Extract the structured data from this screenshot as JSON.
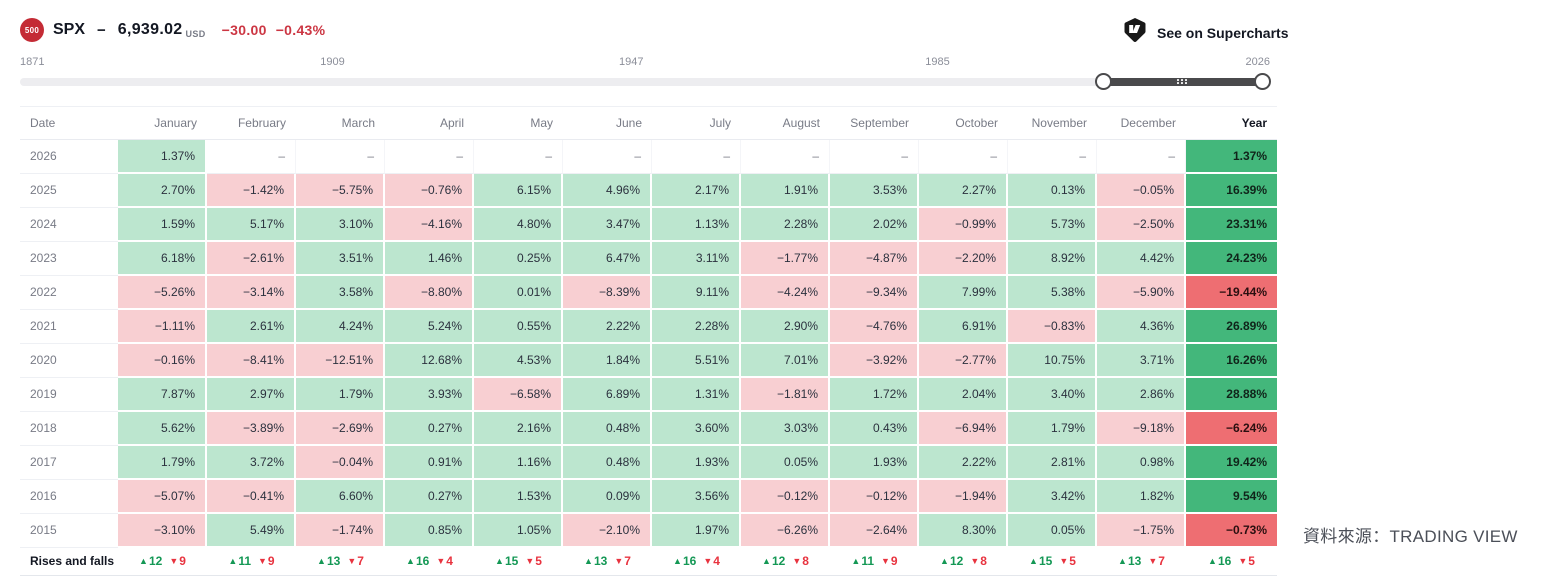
{
  "header": {
    "badge": "500",
    "symbol": "SPX",
    "separator": "−",
    "price": "6,939.02",
    "currency": "USD",
    "change": "−30.00",
    "change_pct": "−0.43%",
    "supercharts_label": "See on Supercharts"
  },
  "icons": {
    "tradingview_logo": "tradingview-logo",
    "up_triangle": "▲",
    "down_triangle": "▼",
    "empty_cell": "–"
  },
  "timeline": {
    "labels": [
      "1871",
      "1909",
      "1947",
      "1985",
      "2026"
    ]
  },
  "table": {
    "columns": [
      "Date",
      "January",
      "February",
      "March",
      "April",
      "May",
      "June",
      "July",
      "August",
      "September",
      "October",
      "November",
      "December",
      "Year"
    ],
    "rows": [
      {
        "year": "2026",
        "months": [
          "1.37%",
          "–",
          "–",
          "–",
          "–",
          "–",
          "–",
          "–",
          "–",
          "–",
          "–",
          "–"
        ],
        "total": "1.37%"
      },
      {
        "year": "2025",
        "months": [
          "2.70%",
          "-1.42%",
          "-5.75%",
          "-0.76%",
          "6.15%",
          "4.96%",
          "2.17%",
          "1.91%",
          "3.53%",
          "2.27%",
          "0.13%",
          "-0.05%"
        ],
        "total": "16.39%"
      },
      {
        "year": "2024",
        "months": [
          "1.59%",
          "5.17%",
          "3.10%",
          "-4.16%",
          "4.80%",
          "3.47%",
          "1.13%",
          "2.28%",
          "2.02%",
          "-0.99%",
          "5.73%",
          "-2.50%"
        ],
        "total": "23.31%"
      },
      {
        "year": "2023",
        "months": [
          "6.18%",
          "-2.61%",
          "3.51%",
          "1.46%",
          "0.25%",
          "6.47%",
          "3.11%",
          "-1.77%",
          "-4.87%",
          "-2.20%",
          "8.92%",
          "4.42%"
        ],
        "total": "24.23%"
      },
      {
        "year": "2022",
        "months": [
          "-5.26%",
          "-3.14%",
          "3.58%",
          "-8.80%",
          "0.01%",
          "-8.39%",
          "9.11%",
          "-4.24%",
          "-9.34%",
          "7.99%",
          "5.38%",
          "-5.90%"
        ],
        "total": "-19.44%"
      },
      {
        "year": "2021",
        "months": [
          "-1.11%",
          "2.61%",
          "4.24%",
          "5.24%",
          "0.55%",
          "2.22%",
          "2.28%",
          "2.90%",
          "-4.76%",
          "6.91%",
          "-0.83%",
          "4.36%"
        ],
        "total": "26.89%"
      },
      {
        "year": "2020",
        "months": [
          "-0.16%",
          "-8.41%",
          "-12.51%",
          "12.68%",
          "4.53%",
          "1.84%",
          "5.51%",
          "7.01%",
          "-3.92%",
          "-2.77%",
          "10.75%",
          "3.71%"
        ],
        "total": "16.26%"
      },
      {
        "year": "2019",
        "months": [
          "7.87%",
          "2.97%",
          "1.79%",
          "3.93%",
          "-6.58%",
          "6.89%",
          "1.31%",
          "-1.81%",
          "1.72%",
          "2.04%",
          "3.40%",
          "2.86%"
        ],
        "total": "28.88%"
      },
      {
        "year": "2018",
        "months": [
          "5.62%",
          "-3.89%",
          "-2.69%",
          "0.27%",
          "2.16%",
          "0.48%",
          "3.60%",
          "3.03%",
          "0.43%",
          "-6.94%",
          "1.79%",
          "-9.18%"
        ],
        "total": "-6.24%"
      },
      {
        "year": "2017",
        "months": [
          "1.79%",
          "3.72%",
          "-0.04%",
          "0.91%",
          "1.16%",
          "0.48%",
          "1.93%",
          "0.05%",
          "1.93%",
          "2.22%",
          "2.81%",
          "0.98%"
        ],
        "total": "19.42%"
      },
      {
        "year": "2016",
        "months": [
          "-5.07%",
          "-0.41%",
          "6.60%",
          "0.27%",
          "1.53%",
          "0.09%",
          "3.56%",
          "-0.12%",
          "-0.12%",
          "-1.94%",
          "3.42%",
          "1.82%"
        ],
        "total": "9.54%"
      },
      {
        "year": "2015",
        "months": [
          "-3.10%",
          "5.49%",
          "-1.74%",
          "0.85%",
          "1.05%",
          "-2.10%",
          "1.97%",
          "-6.26%",
          "-2.64%",
          "8.30%",
          "0.05%",
          "-1.75%"
        ],
        "total": "-0.73%"
      }
    ],
    "rises_falls": {
      "label": "Rises and falls",
      "cells": [
        {
          "up": 12,
          "down": 9
        },
        {
          "up": 11,
          "down": 9
        },
        {
          "up": 13,
          "down": 7
        },
        {
          "up": 16,
          "down": 4
        },
        {
          "up": 15,
          "down": 5
        },
        {
          "up": 13,
          "down": 7
        },
        {
          "up": 16,
          "down": 4
        },
        {
          "up": 12,
          "down": 8
        },
        {
          "up": 11,
          "down": 9
        },
        {
          "up": 12,
          "down": 8
        },
        {
          "up": 15,
          "down": 5
        },
        {
          "up": 13,
          "down": 7
        }
      ],
      "year_cell": {
        "up": 16,
        "down": 5
      }
    }
  },
  "source_note": "資料來源：TRADING VIEW",
  "colors": {
    "cell_green": "#bce6cf",
    "cell_pink": "#f8cfd2",
    "year_green": "#43b77b",
    "year_red": "#ee6e72",
    "up_green": "#149855",
    "down_red": "#e8333f",
    "change_red": "#cc3643",
    "badge_red": "#c42b35",
    "accent_dark": "#4a4a4c"
  }
}
